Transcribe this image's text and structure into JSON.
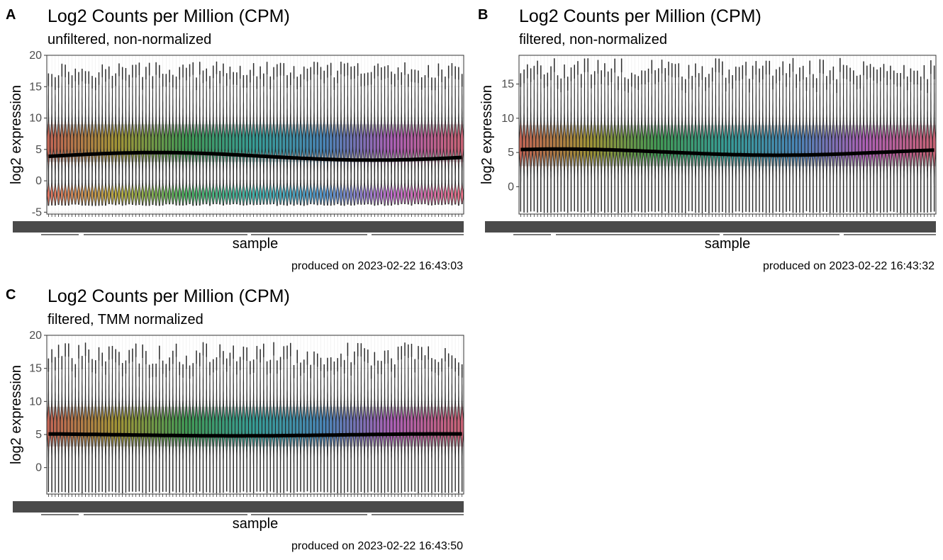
{
  "figure": {
    "panels": [
      {
        "tag": "A",
        "title": "Log2 Counts per Million (CPM)",
        "subtitle": "unfiltered, non-normalized",
        "caption": "produced on 2023-02-22 16:43:03",
        "xlabel": "sample",
        "ylabel": "log2 expression"
      },
      {
        "tag": "B",
        "title": "Log2 Counts per Million (CPM)",
        "subtitle": "filtered, non-normalized",
        "caption": "produced on 2023-02-22 16:43:32",
        "xlabel": "sample",
        "ylabel": "log2 expression"
      },
      {
        "tag": "C",
        "title": "Log2 Counts per Million (CPM)",
        "subtitle": "filtered, TMM normalized",
        "caption": "produced on 2023-02-22 16:43:50",
        "xlabel": "sample",
        "ylabel": "log2 expression"
      }
    ]
  },
  "chart_data": [
    {
      "type": "violin",
      "n_samples": 124,
      "ylim": [
        -5.3,
        20.0
      ],
      "yticks": [
        -5,
        0,
        5,
        10,
        15,
        20
      ],
      "ytick_labels": [
        "-5",
        "0",
        "5",
        "10",
        "15",
        "20"
      ],
      "violin_min": -3.8,
      "violin_max_range": [
        15.0,
        19.0
      ],
      "density_modes": [
        6.0,
        -2.2
      ],
      "median_range": [
        3.3,
        4.5
      ],
      "grid": true,
      "fill_palette": [
        "#e6624a",
        "#b8a51e",
        "#2fae4b",
        "#1fb0a8",
        "#3a8fd6",
        "#c85ad4",
        "#ef5d78"
      ]
    },
    {
      "type": "violin",
      "n_samples": 124,
      "ylim": [
        -4.0,
        19.2
      ],
      "yticks": [
        0,
        5,
        10,
        15
      ],
      "ytick_labels": [
        "0",
        "5",
        "10",
        "15"
      ],
      "violin_min": -3.7,
      "violin_max_range": [
        14.0,
        18.8
      ],
      "density_modes": [
        6.0
      ],
      "median_range": [
        4.6,
        5.5
      ],
      "grid": true,
      "fill_palette": [
        "#e6624a",
        "#b8a51e",
        "#2fae4b",
        "#1fb0a8",
        "#3a8fd6",
        "#c85ad4",
        "#ef5d78"
      ]
    },
    {
      "type": "violin",
      "n_samples": 124,
      "ylim": [
        -4.0,
        20.0
      ],
      "yticks": [
        0,
        5,
        10,
        15,
        20
      ],
      "ytick_labels": [
        "0",
        "5",
        "10",
        "15",
        "20"
      ],
      "violin_min": -3.7,
      "violin_max_range": [
        13.5,
        19.0
      ],
      "density_modes": [
        6.2
      ],
      "median_range": [
        4.8,
        5.1
      ],
      "grid": true,
      "fill_palette": [
        "#e6624a",
        "#b8a51e",
        "#2fae4b",
        "#1fb0a8",
        "#3a8fd6",
        "#c85ad4",
        "#ef5d78"
      ]
    }
  ]
}
